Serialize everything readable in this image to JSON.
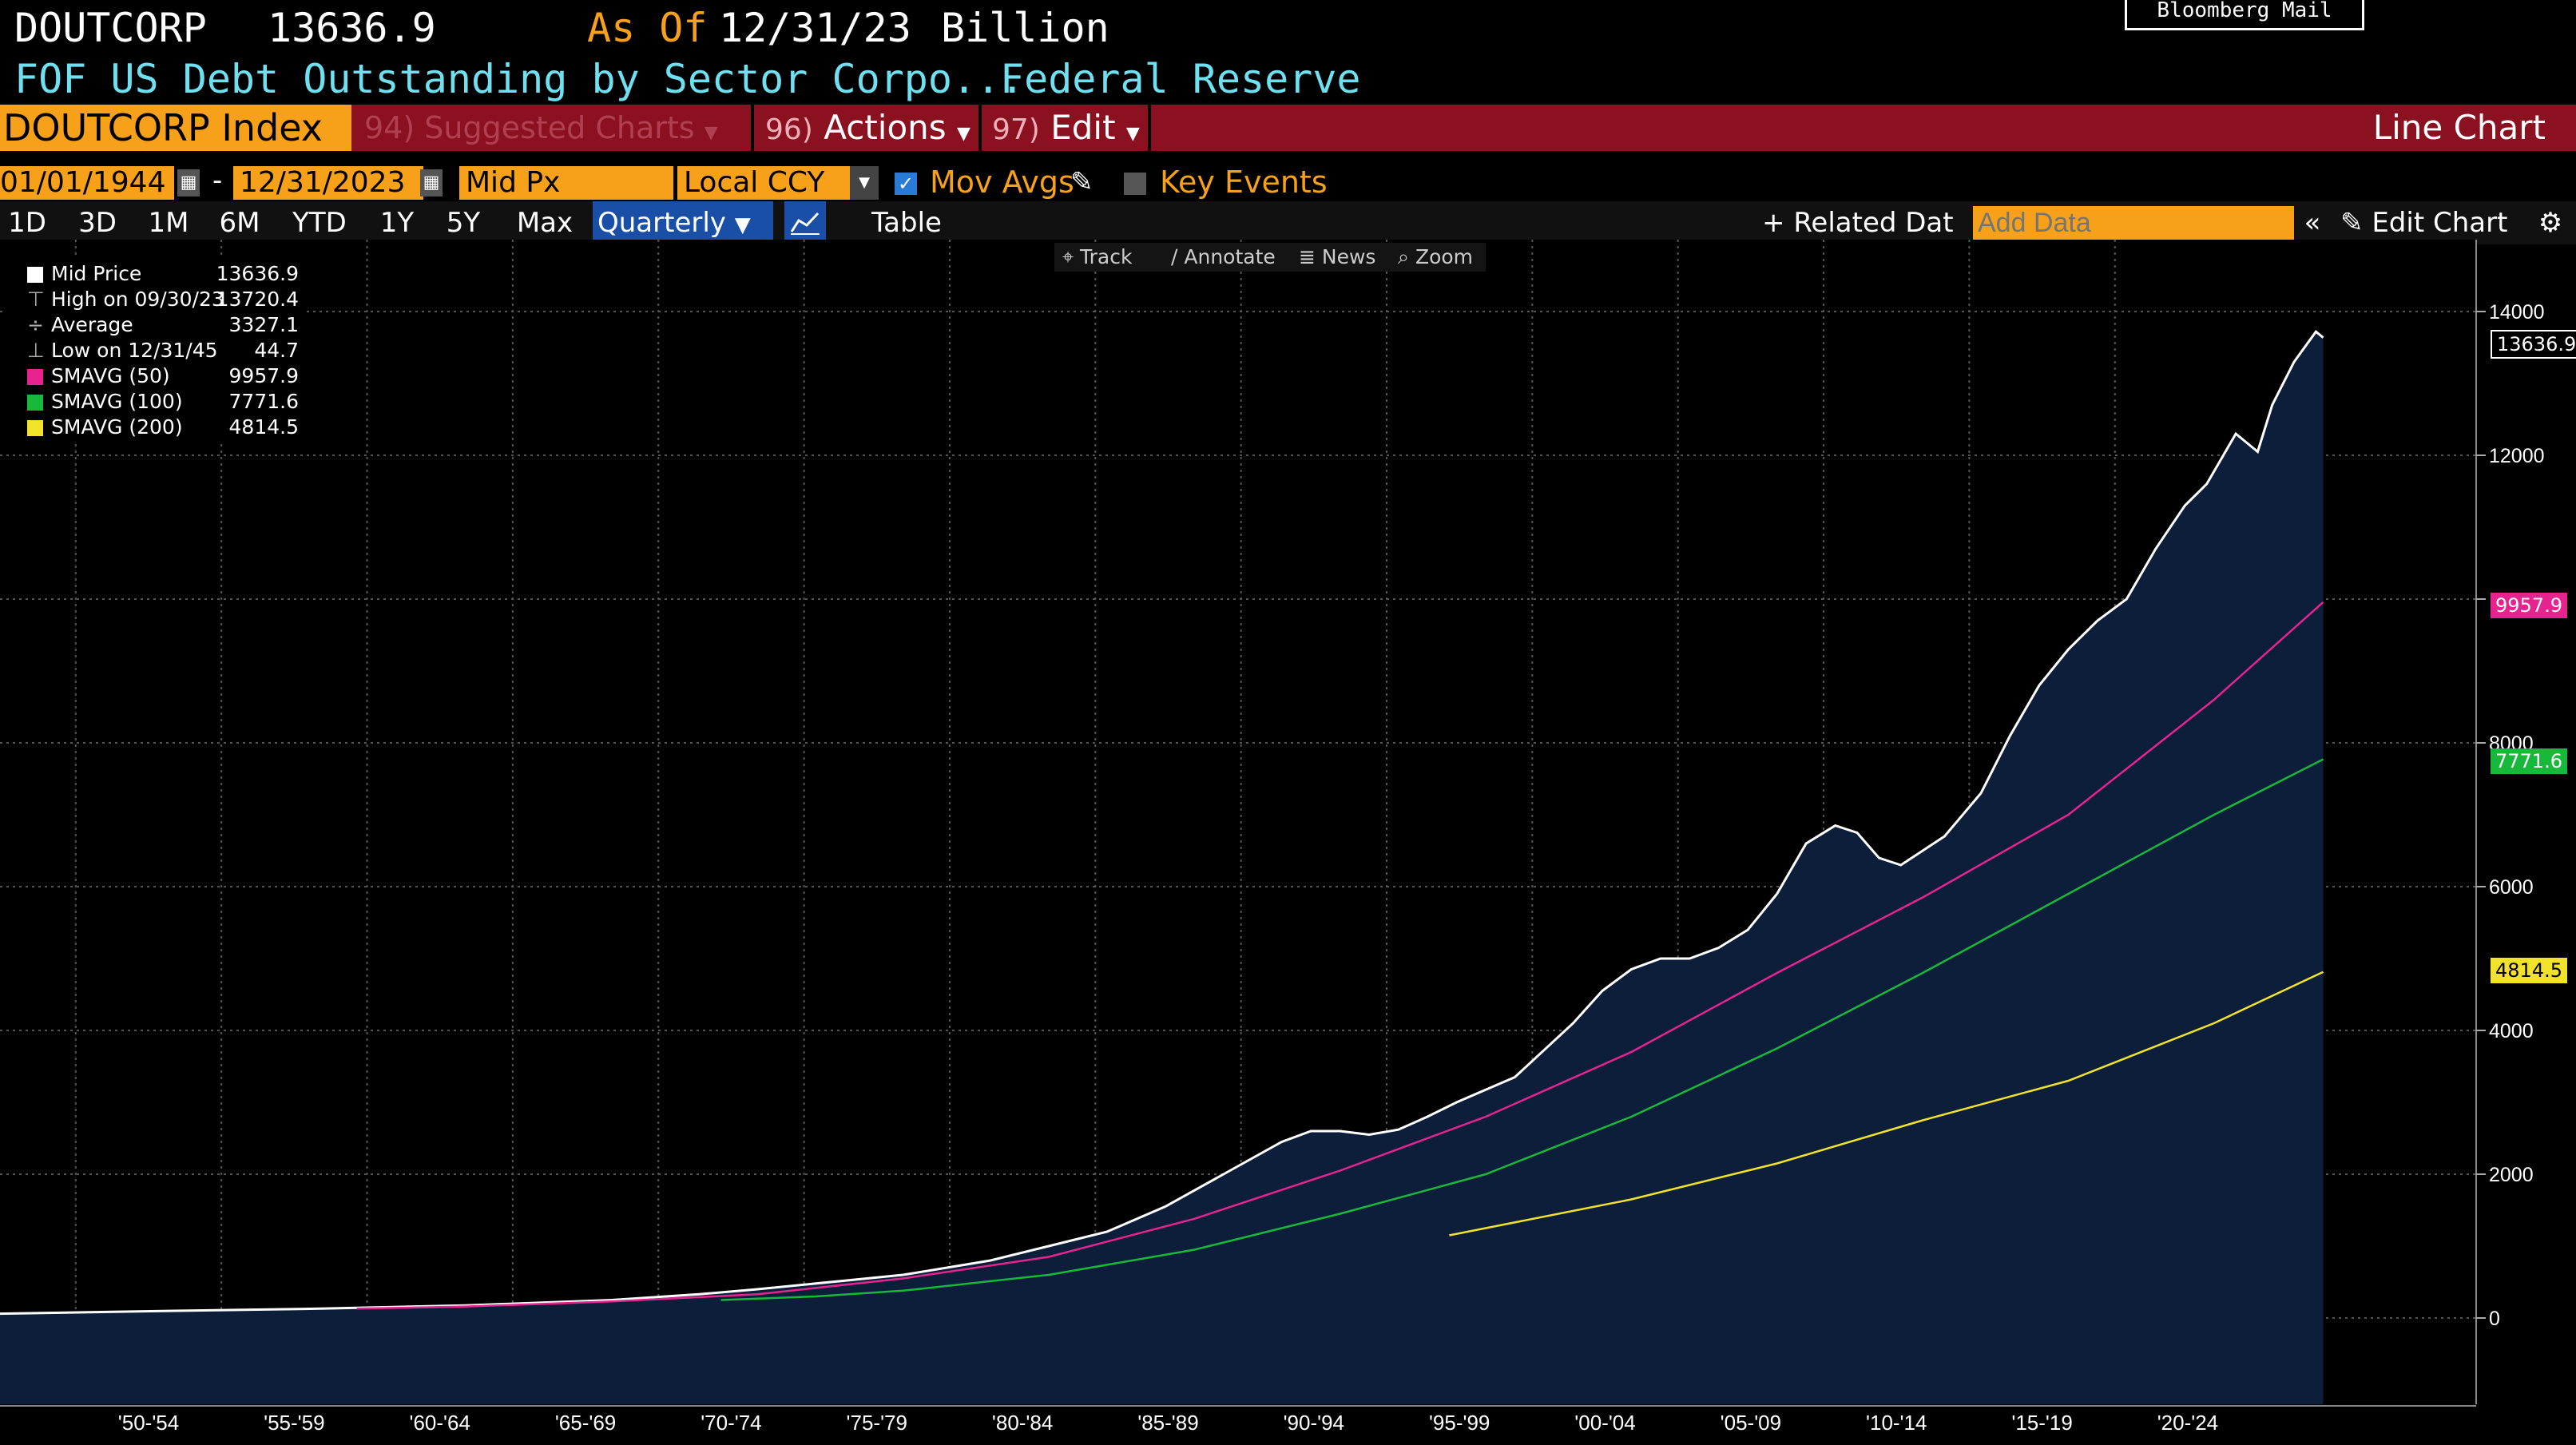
{
  "header": {
    "ticker": "DOUTCORP",
    "last_value": "13636.9",
    "as_of_label": "As Of",
    "as_of_date": "12/31/23",
    "units": "Billion",
    "description": "FOF US Debt Outstanding by Sector Corpo...",
    "source": "Federal Reserve",
    "mail_button": "Bloomberg Mail"
  },
  "menu": {
    "security": "DOUTCORP Index",
    "suggested": "94) Suggested Charts",
    "actions_num": "96)",
    "actions": "Actions",
    "edit_num": "97)",
    "edit": "Edit",
    "chart_type": "Line Chart"
  },
  "controls": {
    "start_date": "01/01/1944",
    "dash": "-",
    "end_date": "12/31/2023",
    "field": "Mid Px",
    "currency": "Local CCY",
    "mov_avgs": "Mov Avgs",
    "key_events": "Key Events"
  },
  "tabs": {
    "ranges": [
      "1D",
      "3D",
      "1M",
      "6M",
      "YTD",
      "1Y",
      "5Y",
      "Max"
    ],
    "periodicity": "Quarterly",
    "table": "Table",
    "related": "Related Dat",
    "add_data_placeholder": "Add Data",
    "edit_chart": "Edit Chart"
  },
  "chart_tools": {
    "track": "Track",
    "annotate": "Annotate",
    "news": "News",
    "zoom": "Zoom"
  },
  "legend": [
    {
      "label": "Mid Price",
      "value": "13636.9",
      "color": "#ffffff"
    },
    {
      "label": "High on 09/30/23",
      "value": "13720.4",
      "color": ""
    },
    {
      "label": "Average",
      "value": "3327.1",
      "color": ""
    },
    {
      "label": "Low on 12/31/45",
      "value": "44.7",
      "color": ""
    },
    {
      "label": "SMAVG (50)",
      "value": "9957.9",
      "color": "#e6238f"
    },
    {
      "label": "SMAVG (100)",
      "value": "7771.6",
      "color": "#18b83a"
    },
    {
      "label": "SMAVG (200)",
      "value": "4814.5",
      "color": "#f2e32a"
    }
  ],
  "badges": {
    "price": "13636.9",
    "sma50": "9957.9",
    "sma100": "7771.6",
    "sma200": "4814.5"
  },
  "chart_data": {
    "type": "area",
    "title": "",
    "xlabel": "",
    "ylabel": "",
    "ylim": [
      -1200,
      15000
    ],
    "yticks": [
      0,
      2000,
      4000,
      6000,
      8000,
      10000,
      12000,
      14000
    ],
    "ytick_labels": [
      "0",
      "2000",
      "4000",
      "6000",
      "8000",
      "",
      "12000",
      "14000"
    ],
    "xlim": [
      1944.0,
      2029.0
    ],
    "xtick_labels": [
      "'50-'54",
      "'55-'59",
      "'60-'64",
      "'65-'69",
      "'70-'74",
      "'75-'79",
      "'80-'84",
      "'85-'89",
      "'90-'94",
      "'95-'99",
      "'00-'04",
      "'05-'09",
      "'10-'14",
      "'15-'19",
      "'20-'24"
    ],
    "xtick_positions": [
      1946.6,
      1951.6,
      1956.6,
      1961.6,
      1966.6,
      1971.6,
      1976.6,
      1981.6,
      1986.6,
      1991.6,
      1996.6,
      2001.6,
      2006.6,
      2011.6,
      2016.6
    ],
    "grid": true,
    "series": [
      {
        "name": "Mid Price",
        "color": "#ffffff",
        "x": [
          1944,
          1950,
          1955,
          1960,
          1965,
          1968,
          1970,
          1973,
          1975,
          1978,
          1980,
          1982,
          1984,
          1986,
          1988,
          1989,
          1990,
          1991,
          1992,
          1993,
          1994,
          1996,
          1998,
          1999,
          2000,
          2001,
          2002,
          2003,
          2004,
          2005,
          2006,
          2007,
          2007.75,
          2008.5,
          2009.25,
          2010,
          2010.75,
          2012,
          2013,
          2014,
          2015,
          2016,
          2017,
          2018,
          2019,
          2019.75,
          2020.25,
          2020.75,
          2021.5,
          2022,
          2022.75,
          2023.5,
          2023.75
        ],
        "y": [
          60,
          100,
          130,
          175,
          250,
          330,
          400,
          520,
          600,
          800,
          1000,
          1200,
          1550,
          2000,
          2450,
          2600,
          2600,
          2550,
          2620,
          2800,
          3000,
          3350,
          4100,
          4550,
          4850,
          5000,
          5000,
          5150,
          5400,
          5900,
          6600,
          6850,
          6750,
          6400,
          6300,
          6500,
          6700,
          7300,
          8100,
          8800,
          9300,
          9700,
          10000,
          10700,
          11300,
          11600,
          11950,
          12300,
          12050,
          12700,
          13300,
          13720,
          13636.9
        ]
      },
      {
        "name": "SMAVG (50)",
        "color": "#e6238f",
        "x": [
          1956.25,
          1960,
          1965,
          1970,
          1975,
          1980,
          1985,
          1990,
          1995,
          2000,
          2005,
          2010,
          2015,
          2020,
          2023.75
        ],
        "y": [
          130,
          160,
          230,
          330,
          550,
          850,
          1380,
          2050,
          2800,
          3700,
          4800,
          5850,
          7000,
          8600,
          9957.9
        ]
      },
      {
        "name": "SMAVG (100)",
        "color": "#18b83a",
        "x": [
          1968.75,
          1972,
          1975,
          1980,
          1985,
          1990,
          1995,
          2000,
          2005,
          2010,
          2015,
          2020,
          2023.75
        ],
        "y": [
          250,
          300,
          380,
          600,
          950,
          1450,
          2000,
          2800,
          3750,
          4800,
          5900,
          7000,
          7771.6
        ]
      },
      {
        "name": "SMAVG (200)",
        "color": "#f2e32a",
        "x": [
          1993.75,
          1995,
          2000,
          2005,
          2010,
          2015,
          2020,
          2023.75
        ],
        "y": [
          1150,
          1250,
          1650,
          2150,
          2750,
          3300,
          4100,
          4814.5
        ]
      }
    ]
  }
}
